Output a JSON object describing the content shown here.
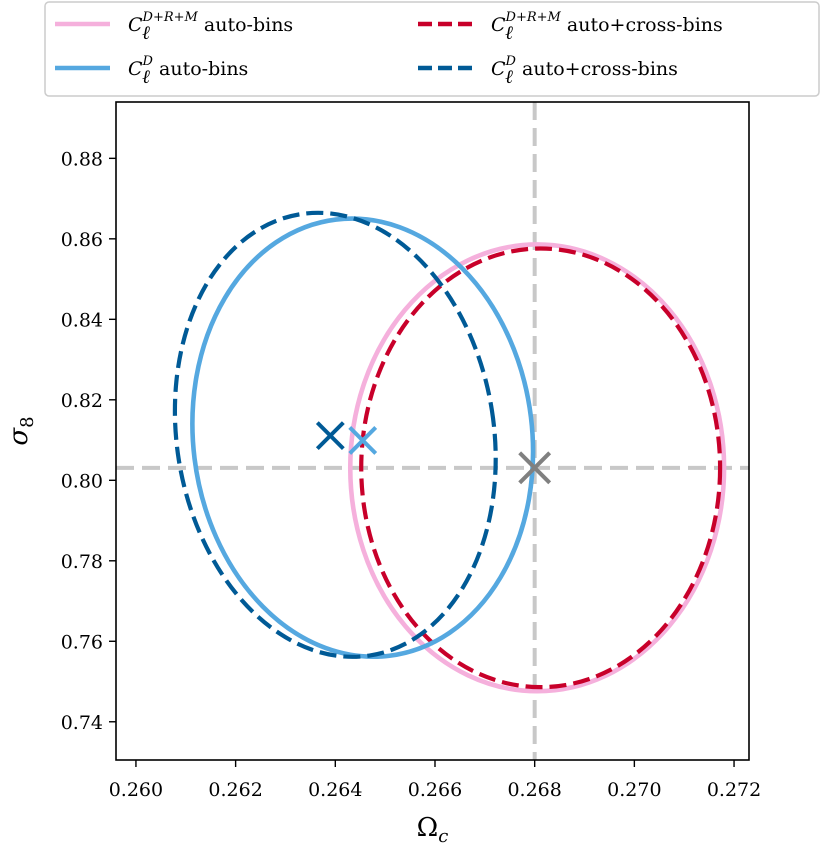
{
  "chart_data": {
    "type": "line",
    "xlabel": "Ωc",
    "ylabel": "σ8",
    "xlim": [
      0.2596,
      0.2723
    ],
    "ylim": [
      0.7305,
      0.894
    ],
    "xticks": [
      0.26,
      0.262,
      0.264,
      0.266,
      0.268,
      0.27,
      0.272
    ],
    "xtick_labels": [
      "0.260",
      "0.262",
      "0.264",
      "0.266",
      "0.268",
      "0.270",
      "0.272"
    ],
    "yticks": [
      0.74,
      0.76,
      0.78,
      0.8,
      0.82,
      0.84,
      0.86,
      0.88
    ],
    "ytick_labels": [
      "0.74",
      "0.76",
      "0.78",
      "0.80",
      "0.82",
      "0.84",
      "0.86",
      "0.88"
    ],
    "grid": false,
    "legend_position": "top",
    "reference": {
      "x": 0.268,
      "y": 0.8031,
      "color": "#c8c8c8",
      "marker_color": "#808080"
    },
    "series": [
      {
        "name": "C_ℓ^{D+R+M} auto-bins",
        "legend_main": "C",
        "legend_sub": "ℓ",
        "legend_sup": "D+R+M",
        "legend_rest": " auto-bins",
        "color": "#f5b0dc",
        "style": "solid",
        "center": [
          0.2679,
          0.8031
        ],
        "ellipse": {
          "cx": 0.26805,
          "cy": 0.8031,
          "a": 0.00375,
          "b": 0.0555,
          "angle": 0
        },
        "marker": null
      },
      {
        "name": "C_ℓ^{D+R+M} auto+cross-bins",
        "legend_main": "C",
        "legend_sub": "ℓ",
        "legend_sup": "D+R+M",
        "legend_rest": " auto+cross-bins",
        "color": "#c8002a",
        "style": "dashed",
        "center": [
          0.268,
          0.8031
        ],
        "ellipse": {
          "cx": 0.26812,
          "cy": 0.8031,
          "a": 0.0036,
          "b": 0.0545,
          "angle": 0
        },
        "marker": null
      },
      {
        "name": "C_ℓ^D auto-bins",
        "legend_main": "C",
        "legend_sub": "ℓ",
        "legend_sup": "D",
        "legend_rest": " auto-bins",
        "color": "#55a8e0",
        "style": "solid",
        "center": [
          0.26455,
          0.8099
        ],
        "ellipse": {
          "cx": 0.26455,
          "cy": 0.8106,
          "a": 0.0034,
          "b": 0.0546,
          "angle": -7
        },
        "marker": [
          0.26455,
          0.8099
        ]
      },
      {
        "name": "C_ℓ^D auto+cross-bins",
        "legend_main": "C",
        "legend_sub": "ℓ",
        "legend_sup": "D",
        "legend_rest": " auto+cross-bins",
        "color": "#005a96",
        "style": "dashed",
        "center": [
          0.2639,
          0.8111
        ],
        "ellipse": {
          "cx": 0.264,
          "cy": 0.8113,
          "a": 0.00318,
          "b": 0.0555,
          "angle": -9
        },
        "marker": [
          0.2639,
          0.8111
        ]
      }
    ]
  }
}
